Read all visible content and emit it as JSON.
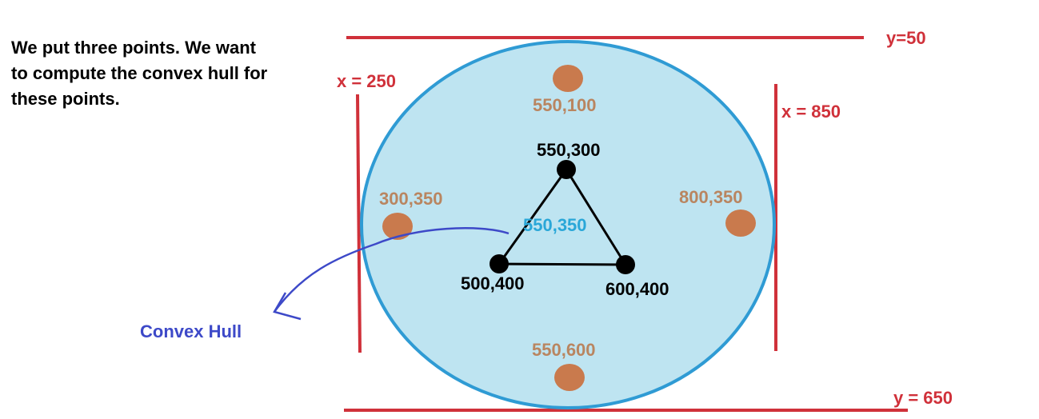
{
  "intro_text": "We put three points. We want to compute the convex hull for these points.",
  "colors": {
    "red_line": "#d0313a",
    "circle_fill": "#bee4f1",
    "circle_stroke": "#2f9bd4",
    "brown_point": "#c97a4d",
    "brown_label": "#b98560",
    "black": "#000000",
    "center_label": "#2aa7d8",
    "hull_blue": "#3d49c8"
  },
  "boundary": {
    "top": "y=50",
    "bottom": "y = 650",
    "left": "x = 250",
    "right": "x = 850"
  },
  "outer_points": {
    "top": "550,100",
    "left": "300,350",
    "right": "800,350",
    "bottom": "550,600"
  },
  "triangle": {
    "top": "550,300",
    "left": "500,400",
    "right": "600,400"
  },
  "center_label": "550,350",
  "hull_label": "Convex Hull"
}
